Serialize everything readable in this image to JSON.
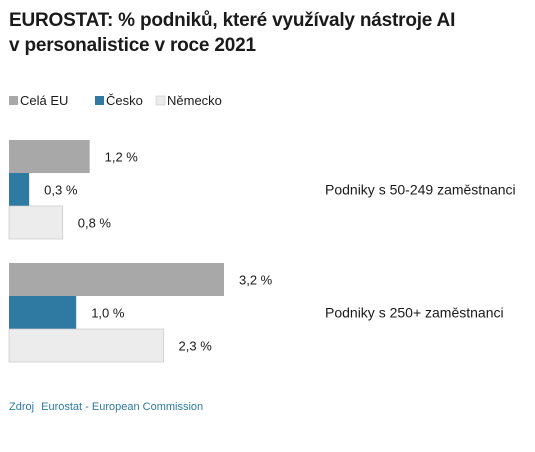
{
  "title_line1": "EUROSTAT: % podniků, které využívaly nástroje AI",
  "title_line2": "v personalistice v roce 2021",
  "source_label": "Zdroj",
  "source_text": "Eurostat - European Commission",
  "chart_data": {
    "type": "bar",
    "orientation": "horizontal",
    "title": "EUROSTAT: % podniků, které využívaly nástroje AI v personalistice v roce 2021",
    "categories": [
      "Podniky s 50-249 zaměstnanci",
      "Podniky s 250+ zaměstnanci"
    ],
    "series": [
      {
        "name": "Celá EU",
        "values": [
          1.2,
          3.2
        ],
        "labels": [
          "1,2 %",
          "3,2 %"
        ],
        "color": "#a8a8a8"
      },
      {
        "name": "Česko",
        "values": [
          0.3,
          1.0
        ],
        "labels": [
          "0,3 %",
          "1,0 %"
        ],
        "color": "#2e7aa3"
      },
      {
        "name": "Německo",
        "values": [
          0.8,
          2.3
        ],
        "labels": [
          "0,8 %",
          "2,3 %"
        ],
        "color": "#ececec"
      }
    ],
    "xlim": [
      0,
      3.2
    ],
    "grid": false,
    "legend_position": "top-left"
  }
}
